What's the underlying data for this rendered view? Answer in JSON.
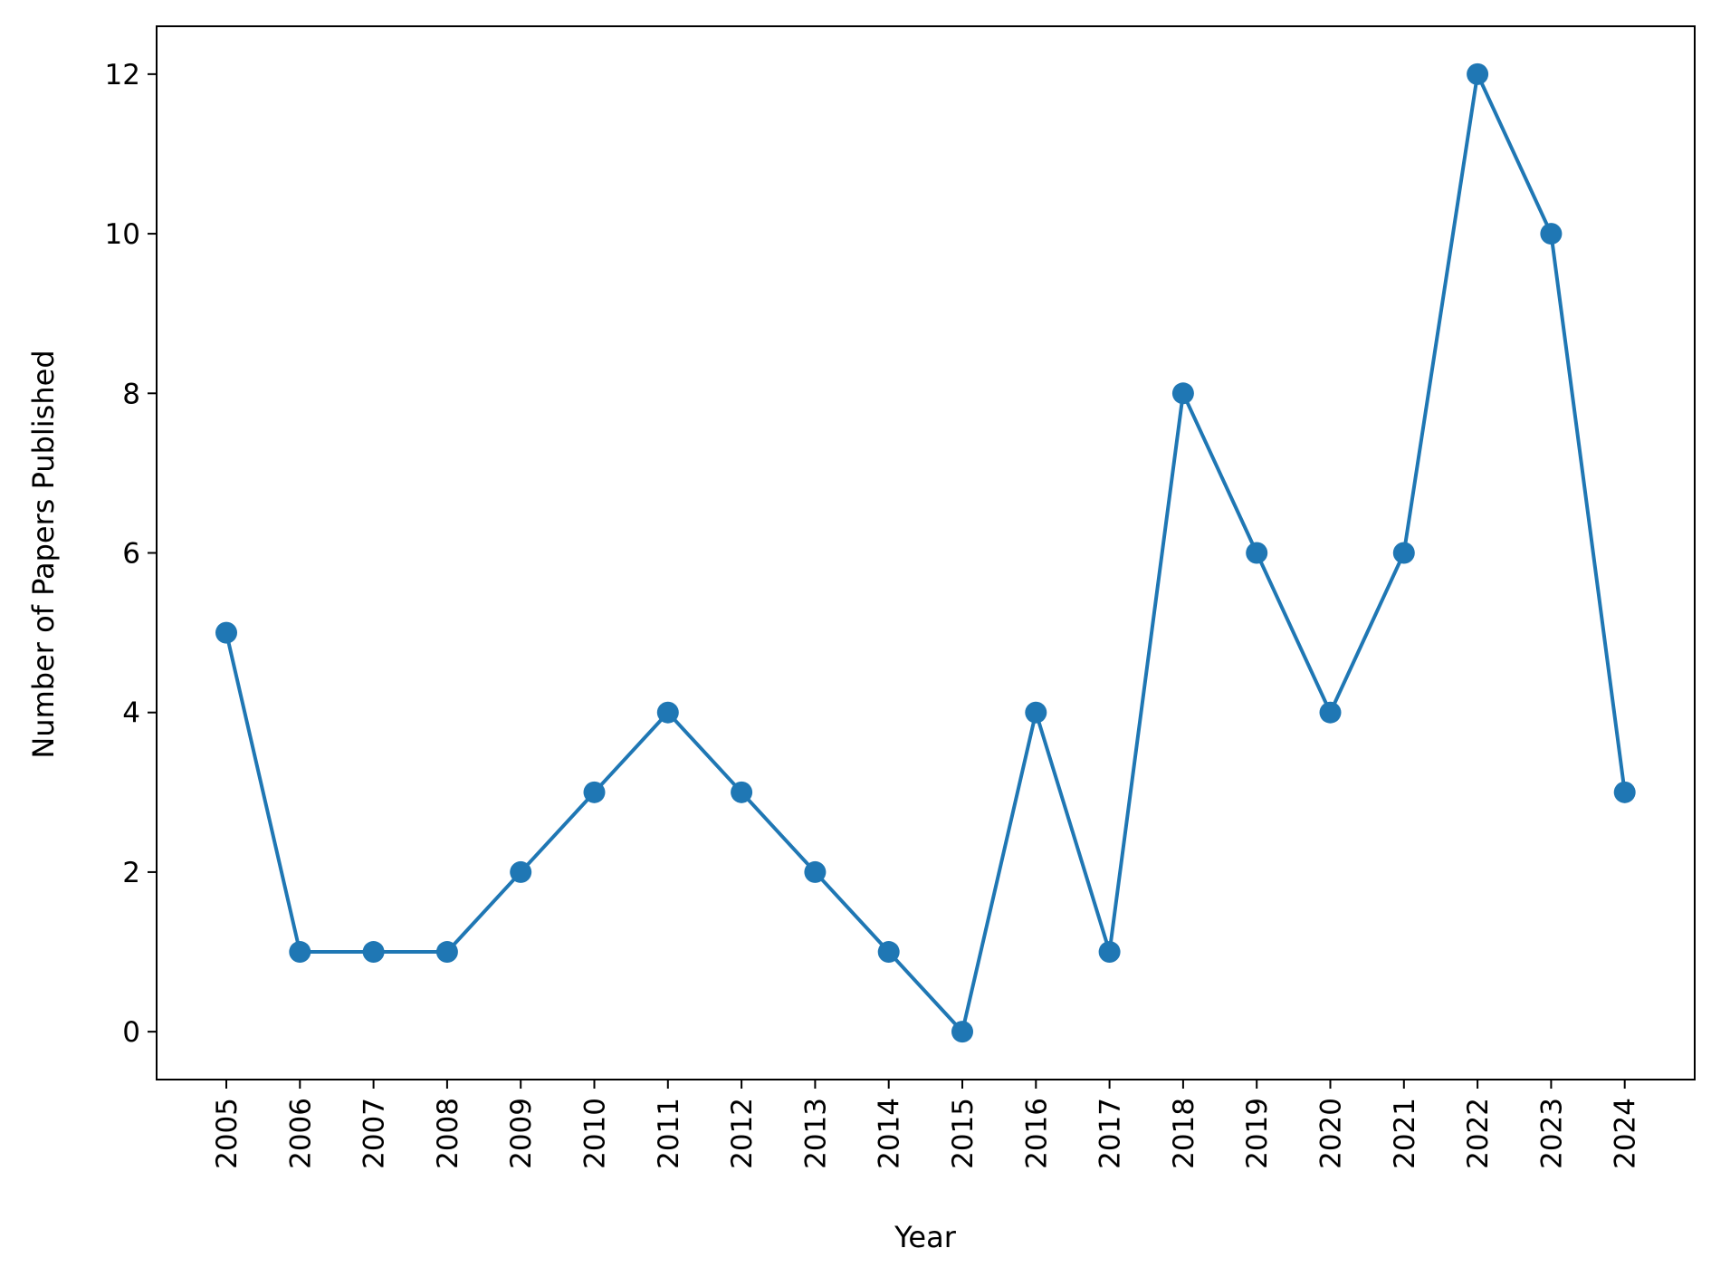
{
  "chart_data": {
    "type": "line",
    "title": "",
    "xlabel": "Year",
    "ylabel": "Number of Papers Published",
    "categories": [
      "2005",
      "2006",
      "2007",
      "2008",
      "2009",
      "2010",
      "2011",
      "2012",
      "2013",
      "2014",
      "2015",
      "2016",
      "2017",
      "2018",
      "2019",
      "2020",
      "2021",
      "2022",
      "2023",
      "2024"
    ],
    "series": [
      {
        "name": "",
        "values": [
          5,
          1,
          1,
          1,
          2,
          3,
          4,
          3,
          2,
          1,
          0,
          4,
          1,
          8,
          6,
          4,
          6,
          12,
          10,
          3
        ]
      }
    ],
    "ylim": [
      -0.6,
      12.6
    ],
    "yticks": [
      0,
      2,
      4,
      6,
      8,
      10,
      12
    ],
    "grid": false,
    "legend": "none",
    "marker": "circle",
    "colors": {
      "series": "#1f77b4",
      "axes": "#000000"
    }
  }
}
